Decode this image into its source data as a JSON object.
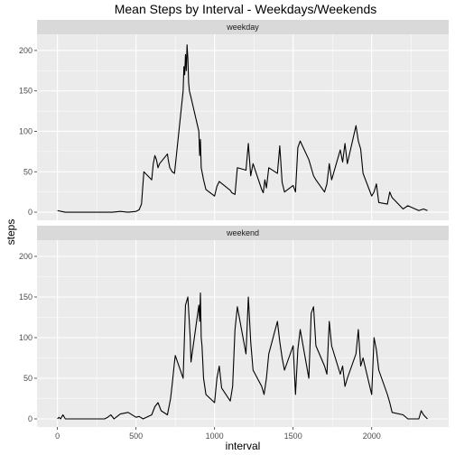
{
  "chart_data": {
    "type": "line",
    "title": "Mean Steps by Interval - Weekdays/Weekends",
    "xlabel": "interval",
    "ylabel": "steps",
    "xlim": [
      -130,
      2490
    ],
    "ylim": [
      -10,
      220
    ],
    "xticks": [
      0,
      500,
      1000,
      1500,
      2000
    ],
    "yticks": [
      0,
      50,
      100,
      150,
      200
    ],
    "grid": true,
    "line_color": "#000000",
    "panel_background": "#ebebeb",
    "strip_background": "#d9d9d9",
    "grid_color": "#ffffff",
    "panels": [
      {
        "label": "weekday",
        "x": [
          0,
          25,
          50,
          100,
          150,
          200,
          250,
          300,
          350,
          400,
          450,
          500,
          520,
          535,
          550,
          600,
          610,
          620,
          630,
          640,
          650,
          700,
          705,
          715,
          730,
          745,
          800,
          805,
          810,
          815,
          820,
          825,
          830,
          835,
          840,
          850,
          900,
          905,
          910,
          915,
          930,
          945,
          1000,
          1015,
          1030,
          1100,
          1110,
          1130,
          1145,
          1200,
          1215,
          1230,
          1245,
          1300,
          1310,
          1320,
          1330,
          1345,
          1400,
          1415,
          1430,
          1445,
          1500,
          1515,
          1530,
          1545,
          1600,
          1615,
          1630,
          1645,
          1700,
          1715,
          1730,
          1745,
          1800,
          1815,
          1830,
          1845,
          1900,
          1915,
          1930,
          1945,
          2000,
          2015,
          2030,
          2045,
          2100,
          2115,
          2130,
          2200,
          2230,
          2300,
          2330,
          2355
        ],
        "y": [
          2,
          1,
          0,
          0,
          0,
          0,
          0,
          0,
          0,
          1,
          0,
          1,
          3,
          10,
          50,
          40,
          60,
          70,
          65,
          55,
          60,
          72,
          65,
          55,
          50,
          48,
          150,
          180,
          170,
          195,
          175,
          207,
          190,
          160,
          150,
          142,
          100,
          70,
          90,
          55,
          40,
          28,
          20,
          32,
          38,
          27,
          24,
          22,
          55,
          52,
          85,
          45,
          60,
          28,
          24,
          40,
          30,
          55,
          48,
          82,
          37,
          25,
          33,
          25,
          80,
          88,
          65,
          55,
          45,
          40,
          25,
          35,
          60,
          40,
          77,
          62,
          85,
          60,
          107,
          88,
          78,
          48,
          20,
          25,
          35,
          12,
          10,
          25,
          18,
          4,
          8,
          2,
          4,
          2
        ]
      },
      {
        "label": "weekend",
        "x": [
          0,
          10,
          20,
          35,
          50,
          100,
          150,
          200,
          250,
          300,
          320,
          340,
          360,
          400,
          450,
          500,
          520,
          545,
          600,
          620,
          640,
          660,
          700,
          720,
          730,
          745,
          750,
          800,
          815,
          830,
          845,
          850,
          900,
          905,
          910,
          915,
          920,
          930,
          945,
          1000,
          1015,
          1030,
          1045,
          1100,
          1115,
          1130,
          1145,
          1200,
          1215,
          1230,
          1245,
          1300,
          1315,
          1330,
          1345,
          1400,
          1415,
          1430,
          1445,
          1500,
          1515,
          1530,
          1545,
          1600,
          1615,
          1630,
          1645,
          1700,
          1715,
          1730,
          1745,
          1800,
          1815,
          1830,
          1845,
          1900,
          1915,
          1930,
          1945,
          2000,
          2015,
          2030,
          2045,
          2100,
          2115,
          2130,
          2200,
          2230,
          2300,
          2315,
          2330,
          2345,
          2355
        ],
        "y": [
          0,
          2,
          0,
          5,
          0,
          0,
          0,
          0,
          0,
          0,
          2,
          5,
          0,
          6,
          8,
          2,
          3,
          0,
          5,
          15,
          20,
          10,
          5,
          25,
          42,
          70,
          78,
          50,
          140,
          150,
          100,
          70,
          140,
          120,
          155,
          100,
          90,
          50,
          30,
          20,
          50,
          65,
          38,
          22,
          40,
          110,
          138,
          80,
          150,
          95,
          60,
          40,
          30,
          50,
          80,
          120,
          95,
          75,
          60,
          90,
          30,
          85,
          110,
          50,
          130,
          138,
          90,
          65,
          55,
          120,
          90,
          55,
          65,
          40,
          50,
          80,
          110,
          65,
          75,
          30,
          100,
          85,
          60,
          30,
          20,
          8,
          5,
          0,
          0,
          10,
          5,
          2,
          0
        ]
      }
    ]
  }
}
